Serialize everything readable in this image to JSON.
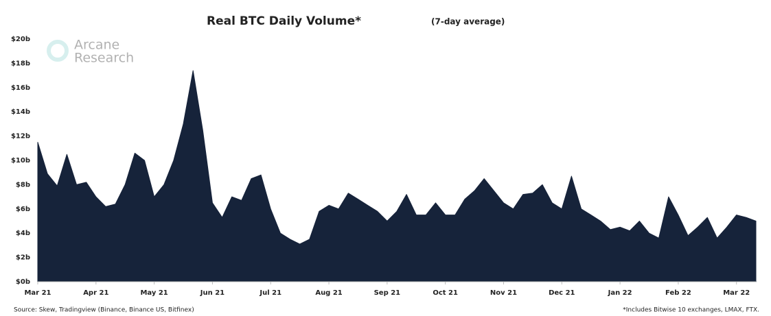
{
  "chart_data": {
    "type": "area",
    "title": "Real BTC Daily Volume*",
    "subtitle": "(7-day average)",
    "watermark": [
      "Arcane",
      "Research"
    ],
    "source": "Source: Skew, Tradingview (Binance, Binance US, Bitfinex)",
    "footnote": "*Includes Bitwise 10 exchanges, LMAX, FTX.",
    "color": "#16233a",
    "categories": [
      "Mar 21",
      null,
      null,
      null,
      null,
      null,
      "Apr 21",
      null,
      null,
      null,
      null,
      null,
      "May 21",
      null,
      null,
      null,
      null,
      null,
      "Jun 21",
      null,
      null,
      null,
      null,
      null,
      "Jul 21",
      null,
      null,
      null,
      null,
      null,
      "Aug 21",
      null,
      null,
      null,
      null,
      null,
      "Sep 21",
      null,
      null,
      null,
      null,
      null,
      "Oct 21",
      null,
      null,
      null,
      null,
      null,
      "Nov 21",
      null,
      null,
      null,
      null,
      null,
      "Dec 21",
      null,
      null,
      null,
      null,
      null,
      "Jan 22",
      null,
      null,
      null,
      null,
      null,
      "Feb 22",
      null,
      null,
      null,
      null,
      null,
      "Mar 22",
      null,
      null
    ],
    "values": [
      11.5,
      8.9,
      7.9,
      10.5,
      8.0,
      8.2,
      7.0,
      6.2,
      6.4,
      8.0,
      10.6,
      10.0,
      7.0,
      8.0,
      10.0,
      13.0,
      17.4,
      12.5,
      6.5,
      5.3,
      7.0,
      6.7,
      8.5,
      8.8,
      6.0,
      4.0,
      3.5,
      3.1,
      3.5,
      5.8,
      6.3,
      6.0,
      7.3,
      6.8,
      6.3,
      5.8,
      5.0,
      5.8,
      7.2,
      5.5,
      5.5,
      6.5,
      5.5,
      5.5,
      6.8,
      7.5,
      8.5,
      7.5,
      6.5,
      6.0,
      7.2,
      7.3,
      8.0,
      6.5,
      6.0,
      8.7,
      6.0,
      5.5,
      5.0,
      4.3,
      4.5,
      4.2,
      5.0,
      4.0,
      3.6,
      7.0,
      5.5,
      3.8,
      4.5,
      5.3,
      3.6,
      4.5,
      5.5,
      5.3,
      5.0
    ],
    "ylim": [
      0,
      20
    ],
    "yticks": [
      {
        "value": 0,
        "label": "$0b"
      },
      {
        "value": 2,
        "label": "$2b"
      },
      {
        "value": 4,
        "label": "$4b"
      },
      {
        "value": 6,
        "label": "$6b"
      },
      {
        "value": 8,
        "label": "$8b"
      },
      {
        "value": 10,
        "label": "$10b"
      },
      {
        "value": 12,
        "label": "$12b"
      },
      {
        "value": 14,
        "label": "$14b"
      },
      {
        "value": 16,
        "label": "$16b"
      },
      {
        "value": 18,
        "label": "$18b"
      },
      {
        "value": 20,
        "label": "$20b"
      }
    ]
  }
}
